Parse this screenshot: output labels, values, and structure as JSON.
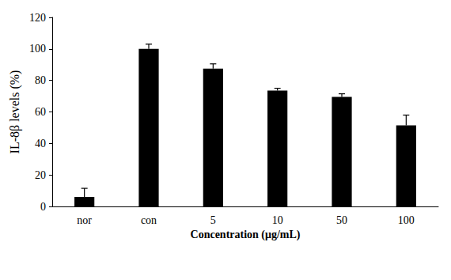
{
  "chart_data": {
    "type": "bar",
    "xlabel": "Concentration (μg/mL)",
    "ylabel": "IL-8β levels (%)",
    "categories": [
      "nor",
      "con",
      "5",
      "10",
      "50",
      "100"
    ],
    "values": [
      6,
      100,
      87.5,
      73.5,
      69.5,
      51.5
    ],
    "errors": [
      5.5,
      3,
      3,
      1.5,
      2,
      6.5
    ],
    "color": "#000000",
    "ylim": [
      0,
      120
    ],
    "yticks": [
      0,
      20,
      40,
      60,
      80,
      100,
      120
    ],
    "grid": false
  }
}
